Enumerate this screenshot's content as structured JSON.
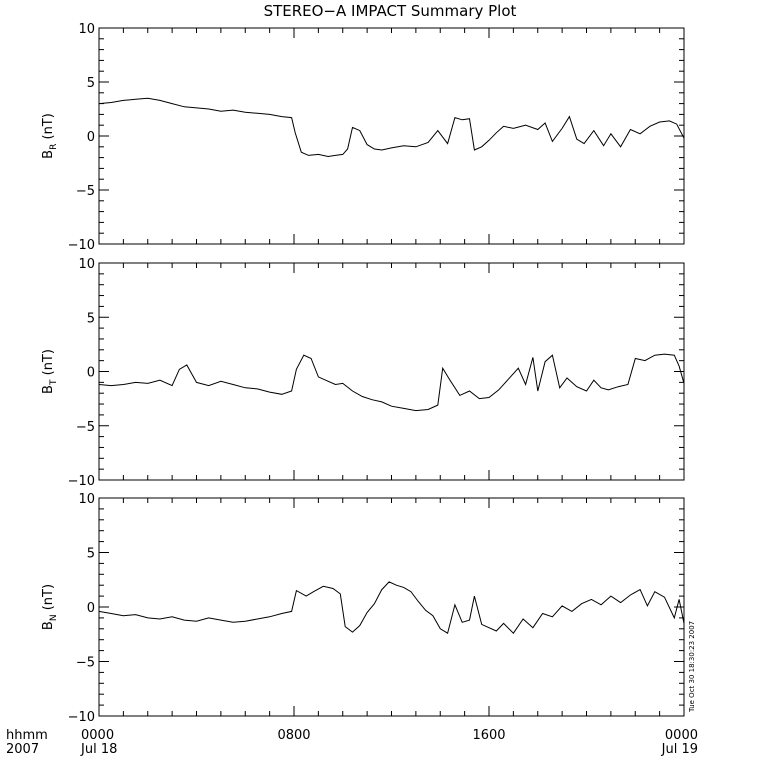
{
  "title": "STEREO−A IMPACT Summary Plot",
  "timestamp": "Tue Oct 30 18:30:23 2007",
  "x_axis": {
    "row1_label": "hhmm",
    "row2_label": "2007",
    "ticks": [
      {
        "hours": 0,
        "label": "0000",
        "date": "Jul 18"
      },
      {
        "hours": 8,
        "label": "0800",
        "date": ""
      },
      {
        "hours": 16,
        "label": "1600",
        "date": ""
      },
      {
        "hours": 24,
        "label": "0000",
        "date": "Jul 19"
      }
    ]
  },
  "chart_data": [
    {
      "type": "line",
      "ylabel": "B",
      "ylabel_sub": "R",
      "ylabel_unit": "(nT)",
      "xlim": [
        0,
        24
      ],
      "ylim": [
        -10,
        10
      ],
      "yticks": [
        -10,
        -5,
        0,
        5,
        10
      ],
      "x": [
        0,
        0.5,
        1,
        1.5,
        2,
        2.5,
        3,
        3.5,
        4,
        4.5,
        5,
        5.5,
        6,
        6.5,
        7,
        7.5,
        7.9,
        8.05,
        8.3,
        8.6,
        9,
        9.4,
        9.7,
        10,
        10.2,
        10.4,
        10.7,
        11,
        11.3,
        11.6,
        12,
        12.5,
        13,
        13.5,
        13.9,
        14.3,
        14.6,
        14.9,
        15.2,
        15.4,
        15.7,
        16,
        16.3,
        16.6,
        17,
        17.5,
        18,
        18.3,
        18.6,
        19,
        19.3,
        19.6,
        19.9,
        20.3,
        20.7,
        21,
        21.4,
        21.8,
        22.2,
        22.6,
        23,
        23.4,
        23.7,
        24
      ],
      "y": [
        3,
        3.1,
        3.3,
        3.4,
        3.5,
        3.3,
        3.0,
        2.7,
        2.6,
        2.5,
        2.3,
        2.4,
        2.2,
        2.1,
        2.0,
        1.8,
        1.7,
        0.3,
        -1.5,
        -1.8,
        -1.7,
        -1.9,
        -1.8,
        -1.7,
        -1.2,
        0.8,
        0.5,
        -0.8,
        -1.2,
        -1.3,
        -1.1,
        -0.9,
        -1.0,
        -0.6,
        0.5,
        -0.7,
        1.7,
        1.5,
        1.6,
        -1.3,
        -1.0,
        -0.4,
        0.3,
        0.9,
        0.7,
        1.0,
        0.6,
        1.2,
        -0.5,
        0.7,
        1.8,
        -0.3,
        -0.7,
        0.5,
        -0.9,
        0.2,
        -1.0,
        0.6,
        0.2,
        0.9,
        1.3,
        1.4,
        1.1,
        -0.2
      ]
    },
    {
      "type": "line",
      "ylabel": "B",
      "ylabel_sub": "T",
      "ylabel_unit": "(nT)",
      "xlim": [
        0,
        24
      ],
      "ylim": [
        -10,
        10
      ],
      "yticks": [
        -10,
        -5,
        0,
        5,
        10
      ],
      "x": [
        0,
        0.5,
        1,
        1.5,
        2,
        2.5,
        3,
        3.3,
        3.6,
        4,
        4.5,
        5,
        5.5,
        6,
        6.5,
        7,
        7.5,
        7.9,
        8.1,
        8.4,
        8.7,
        9,
        9.3,
        9.7,
        10,
        10.4,
        10.8,
        11.2,
        11.6,
        12,
        12.5,
        13,
        13.5,
        13.9,
        14.1,
        14.4,
        14.8,
        15.2,
        15.6,
        16,
        16.4,
        16.8,
        17.2,
        17.5,
        17.8,
        18,
        18.3,
        18.6,
        18.9,
        19.2,
        19.6,
        20,
        20.3,
        20.6,
        20.9,
        21.3,
        21.7,
        22,
        22.4,
        22.8,
        23.2,
        23.6,
        23.8,
        24
      ],
      "y": [
        -1.2,
        -1.3,
        -1.2,
        -1.0,
        -1.1,
        -0.8,
        -1.3,
        0.2,
        0.6,
        -1.0,
        -1.3,
        -0.9,
        -1.2,
        -1.5,
        -1.6,
        -1.9,
        -2.1,
        -1.8,
        0.2,
        1.5,
        1.2,
        -0.5,
        -0.8,
        -1.2,
        -1.1,
        -1.8,
        -2.3,
        -2.6,
        -2.8,
        -3.2,
        -3.4,
        -3.6,
        -3.5,
        -3.1,
        0.3,
        -0.8,
        -2.2,
        -1.8,
        -2.5,
        -2.4,
        -1.7,
        -0.7,
        0.3,
        -1.2,
        1.3,
        -1.8,
        0.9,
        1.5,
        -1.5,
        -0.6,
        -1.4,
        -1.8,
        -0.8,
        -1.5,
        -1.7,
        -1.4,
        -1.2,
        1.2,
        1.0,
        1.5,
        1.6,
        1.5,
        0.5,
        -1.1
      ]
    },
    {
      "type": "line",
      "ylabel": "B",
      "ylabel_sub": "N",
      "ylabel_unit": "(nT)",
      "xlim": [
        0,
        24
      ],
      "ylim": [
        -10,
        10
      ],
      "yticks": [
        -10,
        -5,
        0,
        5,
        10
      ],
      "x": [
        0,
        0.5,
        1,
        1.5,
        2,
        2.5,
        3,
        3.5,
        4,
        4.5,
        5,
        5.5,
        6,
        6.5,
        7,
        7.5,
        7.9,
        8.1,
        8.5,
        8.8,
        9.2,
        9.6,
        9.9,
        10.1,
        10.4,
        10.7,
        11,
        11.3,
        11.6,
        11.9,
        12.2,
        12.5,
        12.8,
        13.1,
        13.4,
        13.7,
        14,
        14.3,
        14.6,
        14.9,
        15.2,
        15.4,
        15.7,
        16,
        16.3,
        16.6,
        17,
        17.4,
        17.8,
        18.2,
        18.6,
        19,
        19.4,
        19.8,
        20.2,
        20.6,
        21,
        21.4,
        21.8,
        22.2,
        22.5,
        22.8,
        23.2,
        23.6,
        23.8,
        24
      ],
      "y": [
        -0.4,
        -0.6,
        -0.8,
        -0.7,
        -1.0,
        -1.1,
        -0.9,
        -1.2,
        -1.3,
        -1.0,
        -1.2,
        -1.4,
        -1.3,
        -1.1,
        -0.9,
        -0.6,
        -0.4,
        1.5,
        1.0,
        1.4,
        1.9,
        1.7,
        1.2,
        -1.8,
        -2.3,
        -1.7,
        -0.5,
        0.3,
        1.6,
        2.3,
        2.0,
        1.8,
        1.4,
        0.5,
        -0.3,
        -0.8,
        -2.0,
        -2.4,
        0.2,
        -1.4,
        -1.2,
        1.0,
        -1.6,
        -1.9,
        -2.2,
        -1.5,
        -2.4,
        -1.1,
        -1.9,
        -0.6,
        -0.9,
        0.1,
        -0.4,
        0.3,
        0.7,
        0.2,
        1.0,
        0.4,
        1.1,
        1.6,
        0.1,
        1.4,
        0.9,
        -1.0,
        0.7,
        -1.5
      ]
    }
  ]
}
